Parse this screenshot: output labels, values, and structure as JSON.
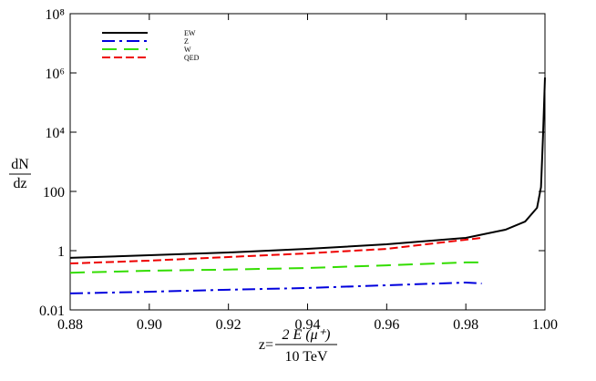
{
  "chart_data": {
    "type": "line",
    "x_label": {
      "prefix": "z=",
      "numerator": "2 E (μ⁺)",
      "denominator": "10 TeV"
    },
    "y_label": {
      "numerator": "dN",
      "denominator": "dz"
    },
    "log_y": true,
    "xlim": [
      0.88,
      1.0
    ],
    "xticks": [
      0.88,
      {
        "value": 0.9,
        "label": "0.90"
      },
      0.92,
      0.94,
      0.96,
      0.98,
      {
        "value": 1.0,
        "label": "1.00"
      }
    ],
    "ylim": [
      0.01,
      100000000
    ],
    "yticks": [
      0.01,
      1,
      100,
      {
        "value": 10000,
        "label": "10⁴"
      },
      {
        "value": 1000000,
        "label": "10⁶"
      },
      {
        "value": 100000000,
        "label": "10⁸"
      }
    ],
    "legend": "upper left",
    "series": [
      {
        "name": "EW",
        "color": "#000000",
        "style": "solid",
        "x": [
          0.88,
          0.9,
          0.92,
          0.94,
          0.96,
          0.98,
          0.99,
          0.995,
          0.998,
          0.999,
          0.9995,
          1.0
        ],
        "values": [
          0.57,
          0.7,
          0.87,
          1.15,
          1.64,
          2.7,
          5.1,
          9.6,
          28,
          140,
          7000,
          700000
        ]
      },
      {
        "name": "Z",
        "color": "#0000dd",
        "style": "dashdot",
        "x": [
          0.88,
          0.9,
          0.92,
          0.94,
          0.96,
          0.98,
          0.984
        ],
        "values": [
          0.036,
          0.041,
          0.048,
          0.055,
          0.068,
          0.084,
          0.078
        ]
      },
      {
        "name": "W",
        "color": "#33dd00",
        "style": "dashed",
        "x": [
          0.88,
          0.9,
          0.92,
          0.94,
          0.96,
          0.98,
          0.984
        ],
        "values": [
          0.18,
          0.21,
          0.23,
          0.26,
          0.32,
          0.4,
          0.4
        ]
      },
      {
        "name": "QED",
        "color": "#ee0000",
        "style": "dashed-short",
        "x": [
          0.88,
          0.9,
          0.92,
          0.94,
          0.96,
          0.984
        ],
        "values": [
          0.37,
          0.46,
          0.61,
          0.81,
          1.15,
          2.7
        ]
      }
    ]
  }
}
